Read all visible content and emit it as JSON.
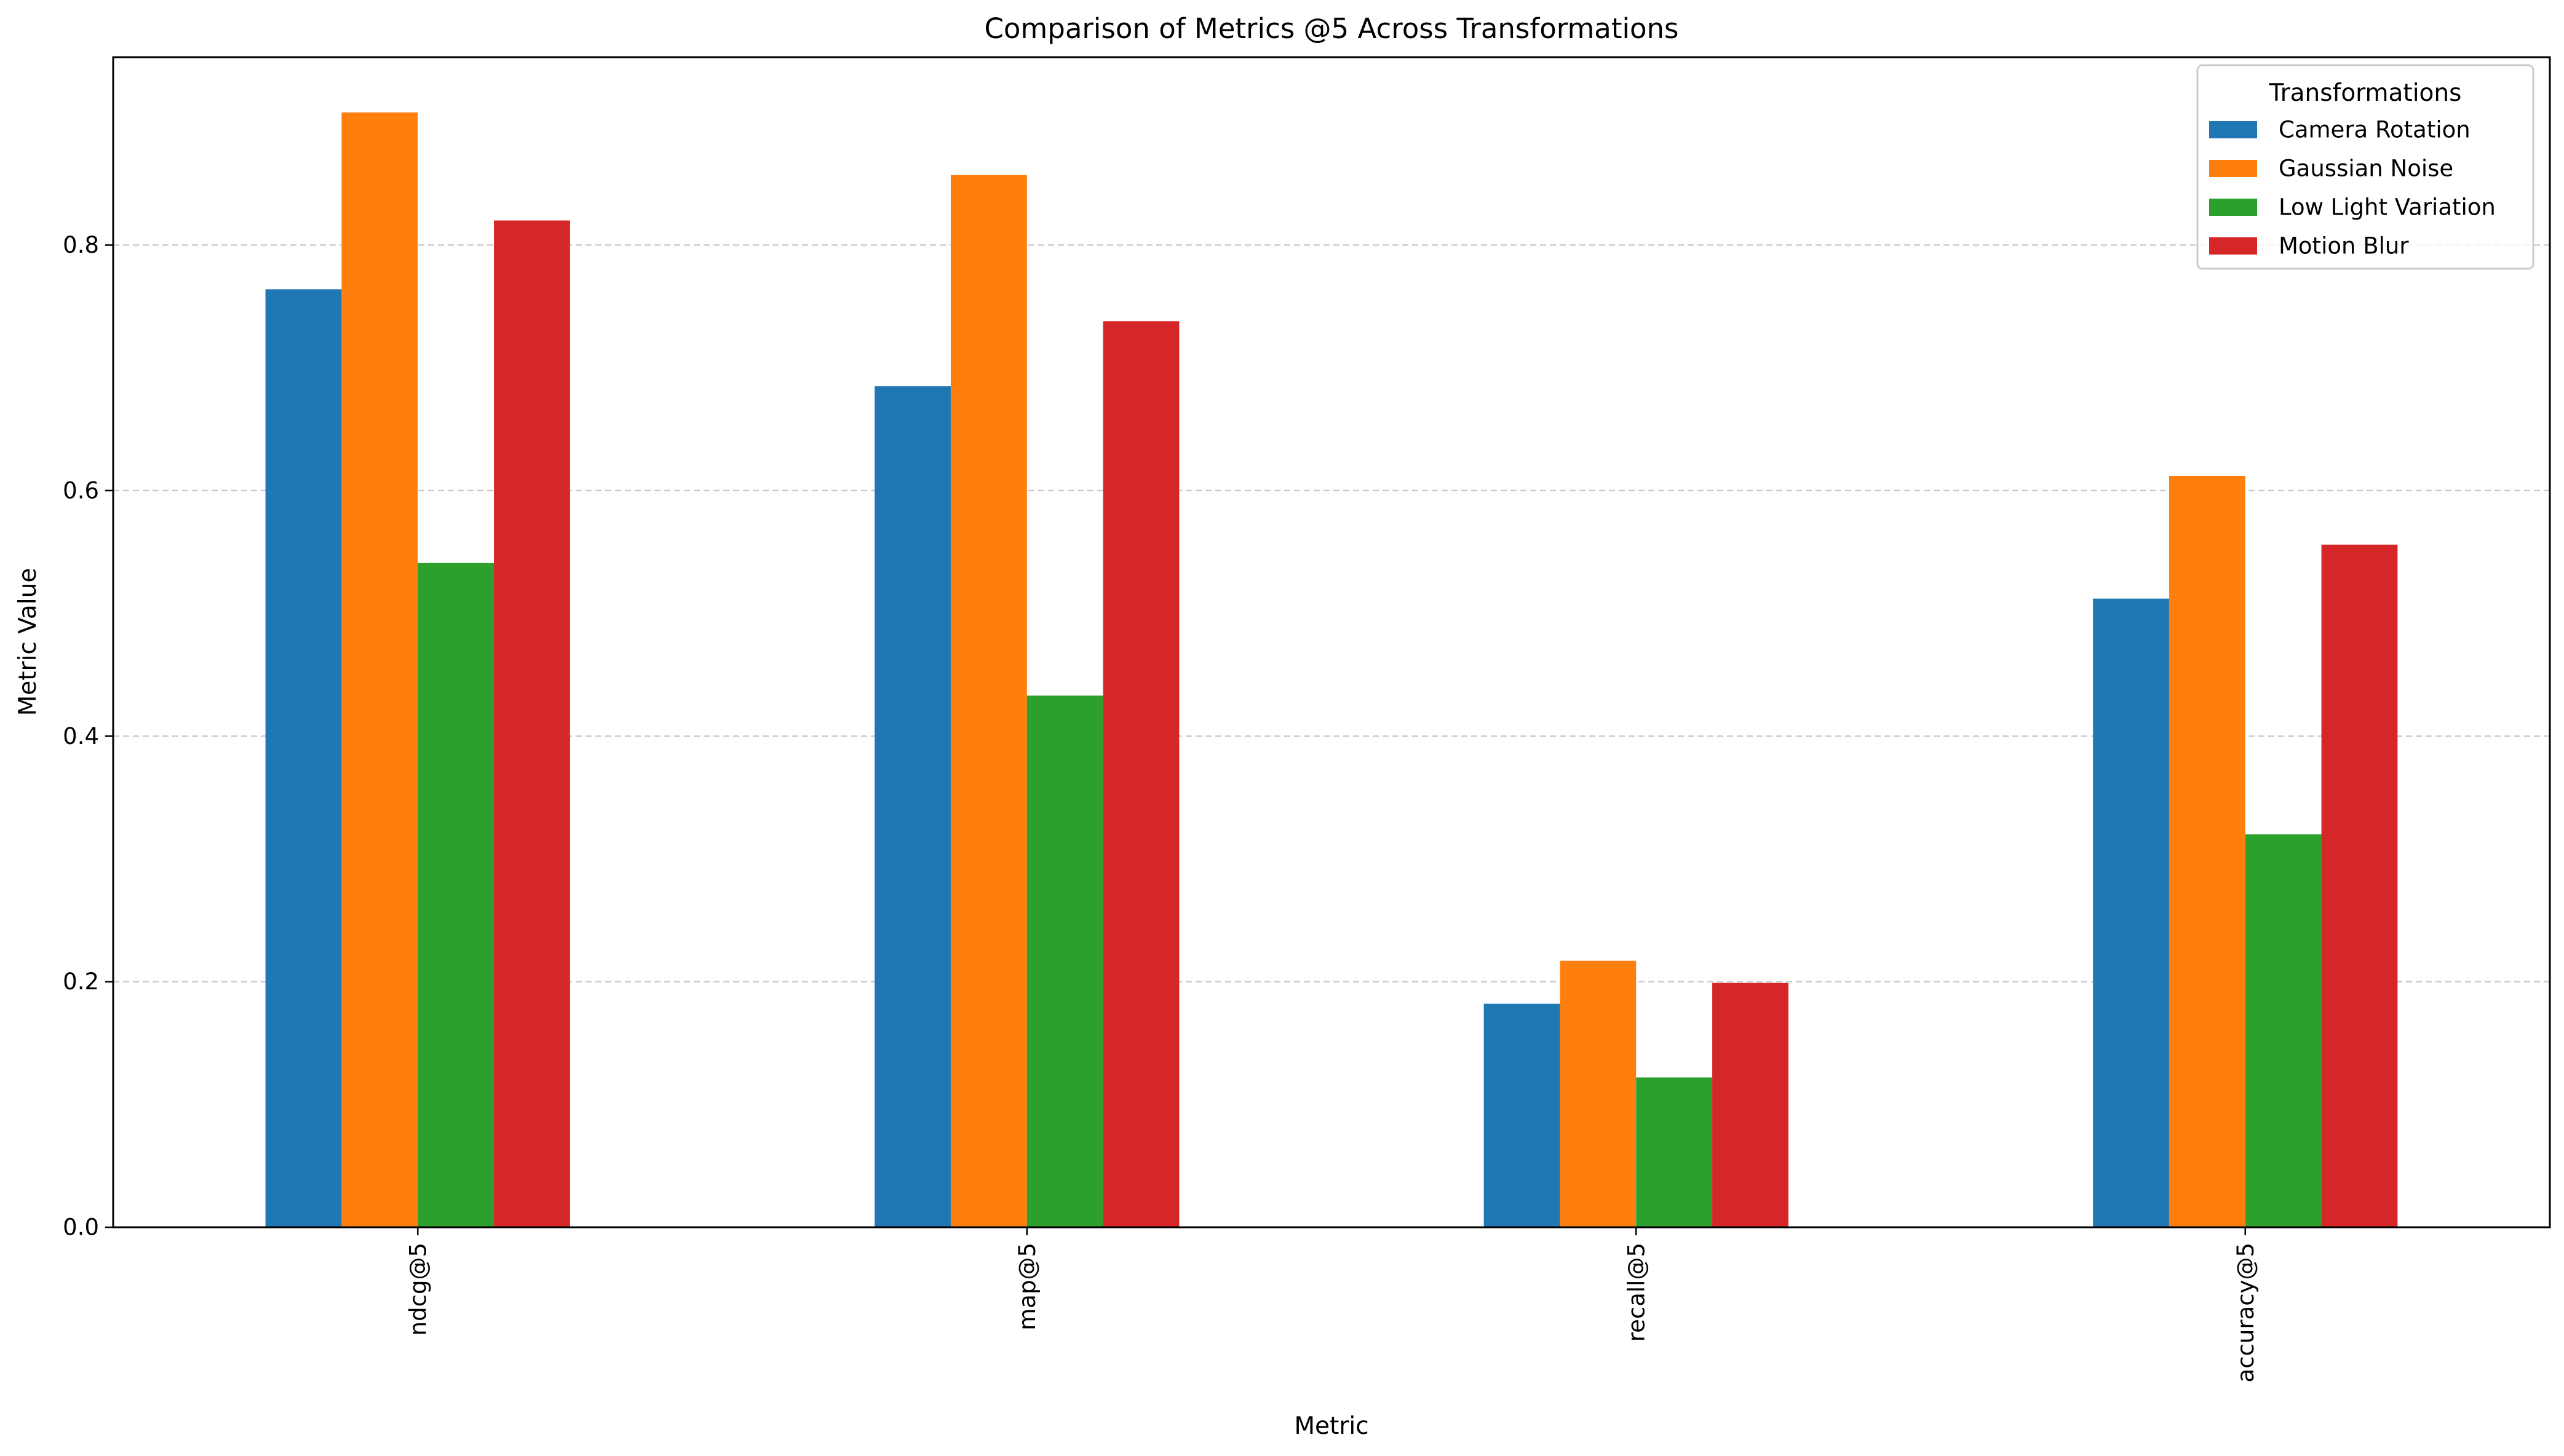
{
  "chart_data": {
    "type": "bar",
    "title": "Comparison of Metrics @5 Across Transformations",
    "xlabel": "Metric",
    "ylabel": "Metric Value",
    "categories": [
      "ndcg@5",
      "map@5",
      "recall@5",
      "accuracy@5"
    ],
    "series": [
      {
        "name": "Camera Rotation",
        "color": "#1f77b4",
        "values": [
          0.764,
          0.685,
          0.182,
          0.512
        ]
      },
      {
        "name": "Gaussian Noise",
        "color": "#ff7f0e",
        "values": [
          0.908,
          0.857,
          0.217,
          0.612
        ]
      },
      {
        "name": "Low Light Variation",
        "color": "#2ca02c",
        "values": [
          0.541,
          0.433,
          0.122,
          0.32
        ]
      },
      {
        "name": "Motion Blur",
        "color": "#d62728",
        "values": [
          0.82,
          0.738,
          0.199,
          0.556
        ]
      }
    ],
    "ylim": [
      0,
      0.953
    ],
    "yticks": [
      "0.0",
      "0.2",
      "0.4",
      "0.6",
      "0.8"
    ],
    "ytick_values": [
      0,
      0.2,
      0.4,
      0.6,
      0.8
    ],
    "grid": "y-dashed",
    "legend": {
      "title": "Transformations",
      "placement": "top-right"
    }
  }
}
